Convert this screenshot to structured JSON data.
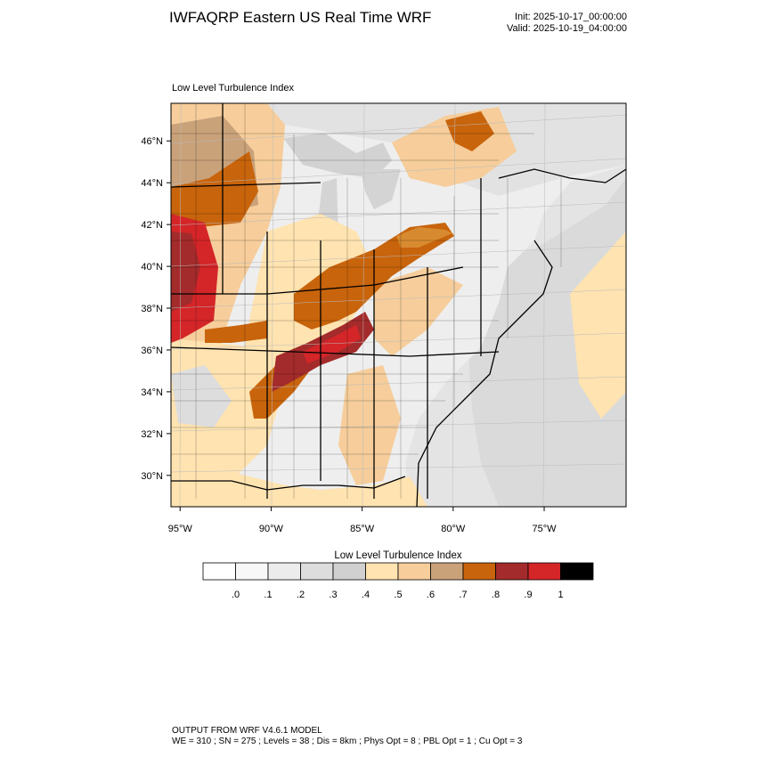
{
  "header": {
    "title": "IWFAQRP Eastern US Real Time WRF",
    "init": "Init: 2025-10-17_00:00:00",
    "valid": "Valid: 2025-10-19_04:00:00"
  },
  "panel_label": "Low Level Turbulence Index",
  "map": {
    "field": "Low Level Turbulence Index",
    "region": "Eastern United States",
    "lon_range": [
      -95.5,
      -70.5
    ],
    "lat_range": [
      28.5,
      47.8
    ],
    "lat_ticks": [
      {
        "value": 30,
        "label": "30°N"
      },
      {
        "value": 32,
        "label": "32°N"
      },
      {
        "value": 34,
        "label": "34°N"
      },
      {
        "value": 36,
        "label": "36°N"
      },
      {
        "value": 38,
        "label": "38°N"
      },
      {
        "value": 40,
        "label": "40°N"
      },
      {
        "value": 42,
        "label": "42°N"
      },
      {
        "value": 44,
        "label": "44°N"
      },
      {
        "value": 46,
        "label": "46°N"
      }
    ],
    "lon_ticks": [
      {
        "value": -95,
        "label": "95°W"
      },
      {
        "value": -90,
        "label": "90°W"
      },
      {
        "value": -85,
        "label": "85°W"
      },
      {
        "value": -80,
        "label": "80°W"
      },
      {
        "value": -75,
        "label": "75°W"
      }
    ]
  },
  "colorbar": {
    "title": "Low Level Turbulence Index",
    "colors": [
      "#ffffff",
      "#f7f7f7",
      "#ececec",
      "#dddddd",
      "#d0d0d0",
      "#ffe3b0",
      "#f6cd9b",
      "#c9a27a",
      "#c8640c",
      "#a32b2b",
      "#d42528",
      "#000000"
    ],
    "labels": [
      ".0",
      ".1",
      ".2",
      ".3",
      ".4",
      ".5",
      ".6",
      ".7",
      ".8",
      ".9",
      "1"
    ]
  },
  "footer": {
    "line1": "OUTPUT FROM WRF V4.6.1 MODEL",
    "line2": "WE = 310 ; SN = 275 ; Levels = 38 ; Dis = 8km ; Phys Opt = 8 ; PBL Opt = 1 ; Cu Opt = 3"
  }
}
